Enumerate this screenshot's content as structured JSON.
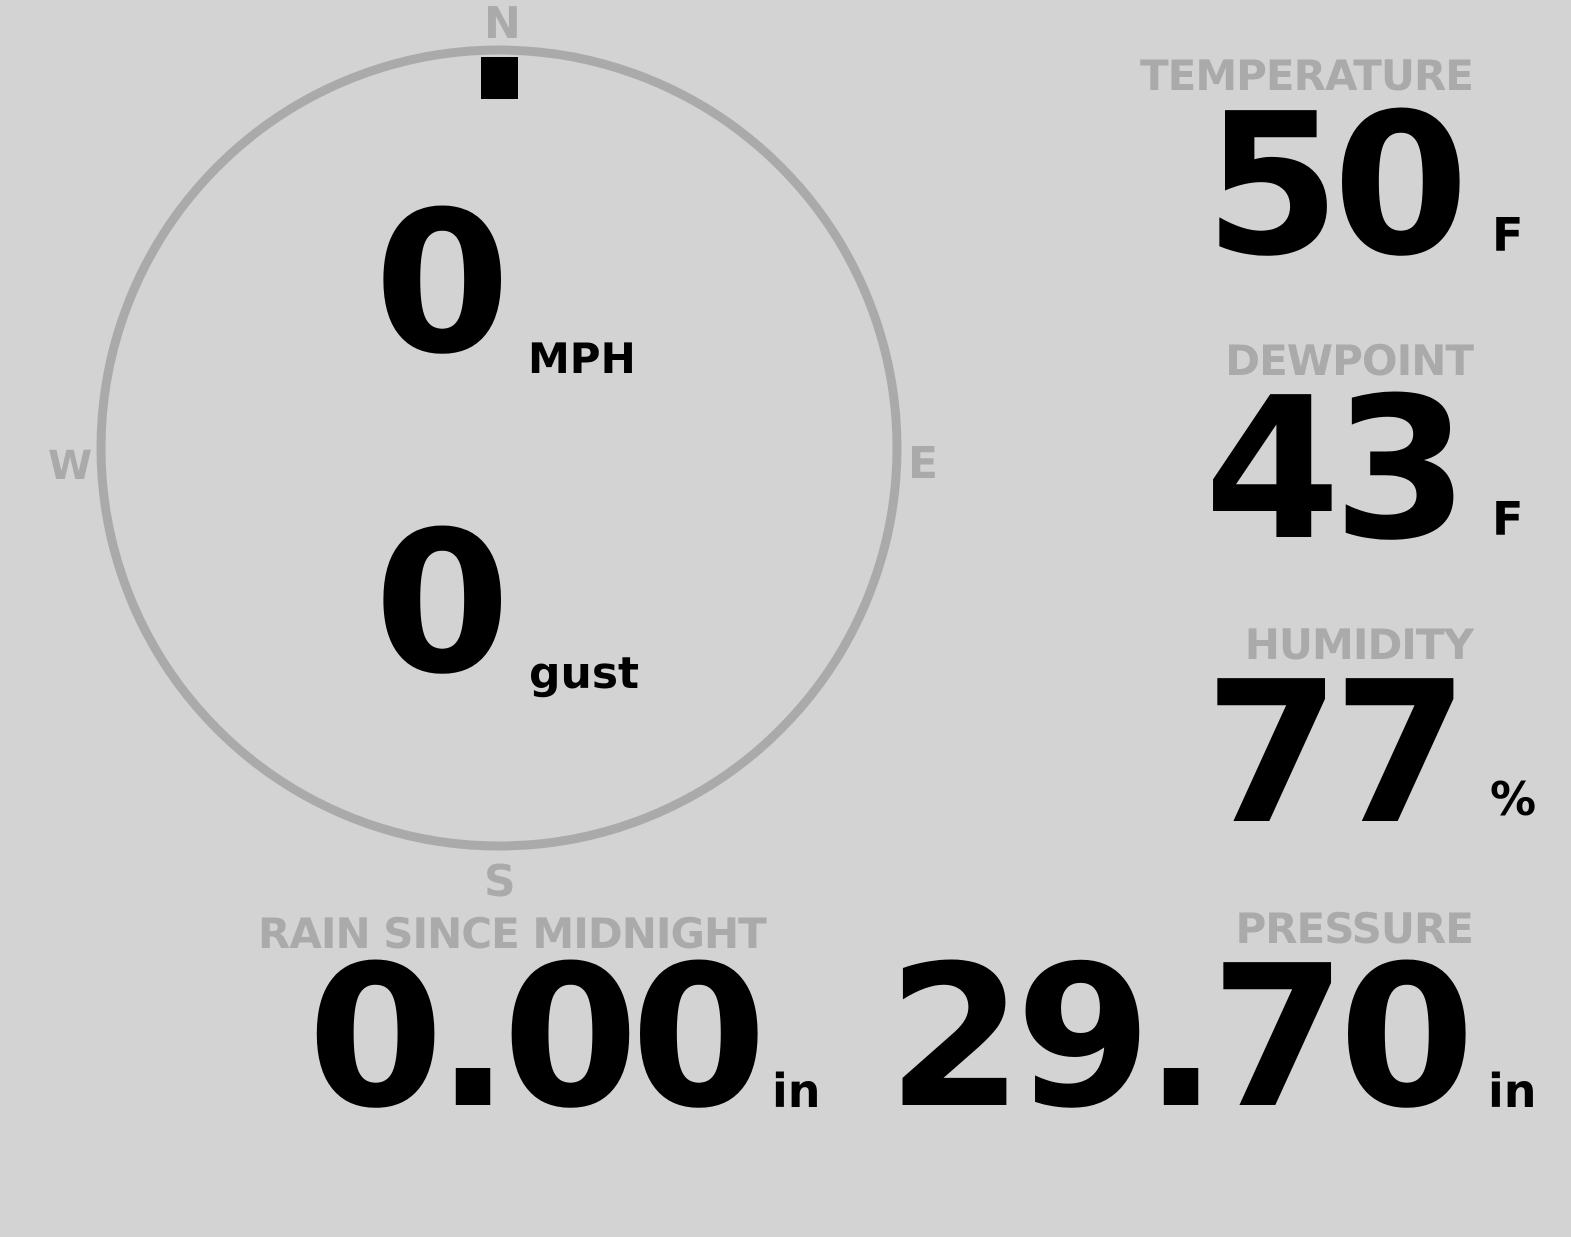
{
  "compass": {
    "north": "N",
    "south": "S",
    "east": "E",
    "west": "W",
    "wind_direction_deg": 0
  },
  "wind": {
    "speed": "0",
    "speed_unit": "MPH",
    "gust": "0",
    "gust_unit": "gust"
  },
  "temperature": {
    "label": "TEMPERATURE",
    "value": "50",
    "unit": "F"
  },
  "dewpoint": {
    "label": "DEWPOINT",
    "value": "43",
    "unit": "F"
  },
  "humidity": {
    "label": "HUMIDITY",
    "value": "77",
    "unit": "%"
  },
  "pressure": {
    "label": "PRESSURE",
    "value": "29.70",
    "unit": "in"
  },
  "rain": {
    "label": "RAIN SINCE MIDNIGHT",
    "value": "0.00",
    "unit": "in"
  },
  "colors": {
    "background": "#d3d3d3",
    "muted": "#aaaaaa",
    "value": "#000000"
  }
}
